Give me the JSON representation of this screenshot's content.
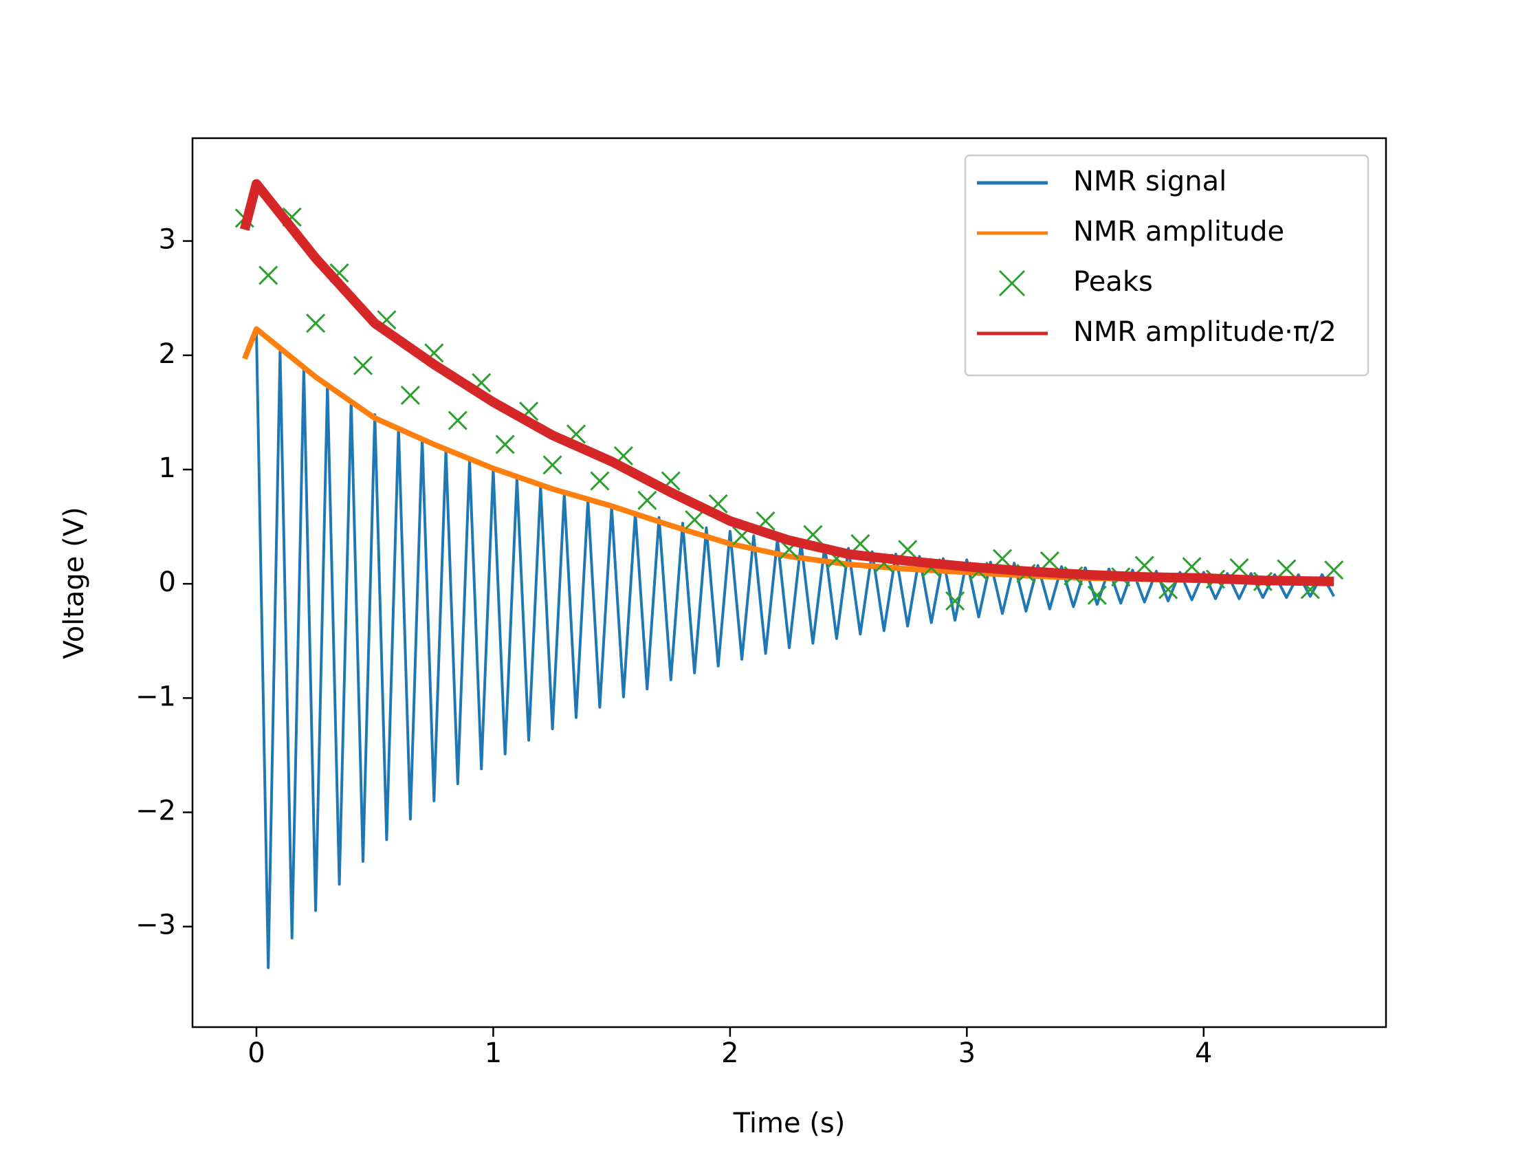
{
  "chart_data": {
    "type": "line",
    "xlabel": "Time (s)",
    "ylabel": "Voltage (V)",
    "xlim": [
      -0.27,
      4.77
    ],
    "ylim": [
      -3.88,
      3.9
    ],
    "xticks": [
      0,
      1,
      2,
      3,
      4
    ],
    "yticks": [
      {
        "value": -3,
        "label": "−3"
      },
      {
        "value": -2,
        "label": "−2"
      },
      {
        "value": -1,
        "label": "−1"
      },
      0,
      1,
      2,
      3
    ],
    "legend": "upper right",
    "series": [
      {
        "name": "NMR signal",
        "color": "#1f77b4",
        "style": "line",
        "x": [
          0,
          0.05,
          0.1,
          0.15,
          0.2,
          0.25,
          0.3,
          0.35,
          0.4,
          0.45,
          0.5,
          0.55,
          0.6,
          0.65,
          0.7,
          0.75,
          0.8,
          0.85,
          0.9,
          0.95,
          1,
          1.05,
          1.1,
          1.15,
          1.2,
          1.25,
          1.3,
          1.35,
          1.4,
          1.45,
          1.5,
          1.55,
          1.6,
          1.65,
          1.7,
          1.75,
          1.8,
          1.85,
          1.9,
          1.95,
          2,
          2.05,
          2.1,
          2.15,
          2.2,
          2.25,
          2.3,
          2.35,
          2.4,
          2.45,
          2.5,
          2.55,
          2.6,
          2.65,
          2.7,
          2.75,
          2.8,
          2.85,
          2.9,
          2.95,
          3,
          3.05,
          3.1,
          3.15,
          3.2,
          3.25,
          3.3,
          3.35,
          3.4,
          3.45,
          3.5,
          3.55,
          3.6,
          3.65,
          3.7,
          3.75,
          3.8,
          3.85,
          3.9,
          3.95,
          4,
          4.05,
          4.1,
          4.15,
          4.2,
          4.25,
          4.3,
          4.35,
          4.4,
          4.45,
          4.5,
          4.55
        ],
        "values": [
          2.2,
          -3.36,
          2.03,
          -3.1,
          1.88,
          -2.86,
          1.74,
          -2.63,
          1.6,
          -2.43,
          1.48,
          -2.24,
          1.37,
          -2.06,
          1.27,
          -1.9,
          1.17,
          -1.75,
          1.08,
          -1.62,
          1,
          -1.49,
          0.92,
          -1.37,
          0.85,
          -1.27,
          0.79,
          -1.17,
          0.73,
          -1.08,
          0.67,
          -0.99,
          0.62,
          -0.92,
          0.58,
          -0.84,
          0.53,
          -0.78,
          0.49,
          -0.72,
          0.46,
          -0.66,
          0.42,
          -0.61,
          0.39,
          -0.56,
          0.36,
          -0.52,
          0.33,
          -0.48,
          0.31,
          -0.44,
          0.28,
          -0.41,
          0.26,
          -0.37,
          0.24,
          -0.34,
          0.22,
          -0.32,
          0.21,
          -0.29,
          0.19,
          -0.26,
          0.18,
          -0.24,
          0.16,
          -0.22,
          0.15,
          -0.2,
          0.14,
          -0.18,
          0.13,
          -0.17,
          0.12,
          -0.16,
          0.11,
          -0.15,
          0.1,
          -0.14,
          0.1,
          -0.13,
          0.09,
          -0.13,
          0.09,
          -0.12,
          0.08,
          -0.12,
          0.08,
          -0.11,
          0.08,
          -0.11
        ]
      },
      {
        "name": "NMR amplitude",
        "color": "#ff7f0e",
        "style": "line",
        "x": [
          -0.05,
          0,
          0.25,
          0.5,
          0.75,
          1,
          1.25,
          1.5,
          1.75,
          2,
          2.25,
          2.5,
          2.75,
          3,
          3.25,
          3.5,
          3.75,
          4,
          4.25,
          4.55
        ],
        "values": [
          1.97,
          2.23,
          1.81,
          1.45,
          1.22,
          1.01,
          0.83,
          0.68,
          0.51,
          0.35,
          0.24,
          0.17,
          0.13,
          0.1,
          0.07,
          0.05,
          0.04,
          0.03,
          0.02,
          0.01
        ]
      },
      {
        "name": "Peaks",
        "color": "#2ca02c",
        "style": "markers",
        "x": [
          -0.05,
          0.05,
          0.15,
          0.25,
          0.35,
          0.45,
          0.55,
          0.65,
          0.75,
          0.85,
          0.95,
          1.05,
          1.15,
          1.25,
          1.35,
          1.45,
          1.55,
          1.65,
          1.75,
          1.85,
          1.95,
          2.05,
          2.15,
          2.25,
          2.35,
          2.45,
          2.55,
          2.65,
          2.75,
          2.85,
          2.95,
          3.05,
          3.15,
          3.25,
          3.35,
          3.45,
          3.55,
          3.65,
          3.75,
          3.85,
          3.95,
          4.05,
          4.15,
          4.25,
          4.35,
          4.45,
          4.55
        ],
        "values": [
          3.2,
          2.7,
          3.21,
          2.28,
          2.72,
          1.91,
          2.31,
          1.65,
          2.02,
          1.43,
          1.76,
          1.22,
          1.51,
          1.04,
          1.31,
          0.9,
          1.12,
          0.73,
          0.9,
          0.56,
          0.7,
          0.42,
          0.55,
          0.3,
          0.43,
          0.22,
          0.35,
          0.18,
          0.3,
          0.14,
          -0.15,
          0.11,
          0.22,
          0.09,
          0.2,
          0.07,
          -0.1,
          0.06,
          0.16,
          -0.05,
          0.15,
          0.04,
          0.14,
          0.02,
          0.13,
          -0.05,
          0.12
        ]
      },
      {
        "name": "NMR amplitude·π/2",
        "color": "#d62728",
        "style": "line",
        "width": 14,
        "x": [
          -0.05,
          0,
          0.25,
          0.5,
          0.75,
          1,
          1.25,
          1.5,
          1.75,
          2,
          2.25,
          2.5,
          2.75,
          3,
          3.25,
          3.5,
          3.75,
          4,
          4.25,
          4.55
        ],
        "values": [
          3.1,
          3.5,
          2.85,
          2.28,
          1.92,
          1.59,
          1.3,
          1.07,
          0.8,
          0.55,
          0.38,
          0.26,
          0.2,
          0.15,
          0.11,
          0.08,
          0.06,
          0.05,
          0.03,
          0.02
        ]
      }
    ]
  }
}
